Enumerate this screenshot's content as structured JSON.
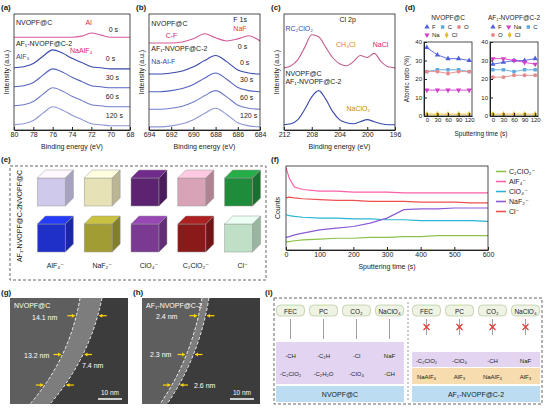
{
  "chart_data": [
    {
      "type": "line",
      "panel_label": "(a)",
      "xlabel": "Binding energy (eV)",
      "ylabel": "Intensity (a.u.)",
      "xlim": [
        80,
        68
      ],
      "xticks": [
        80,
        78,
        76,
        74,
        72,
        70,
        68
      ],
      "ylim": [
        0,
        110
      ],
      "tick_labels": "x",
      "x": [
        80,
        79,
        78,
        77,
        76,
        75,
        74,
        73,
        72,
        71,
        70,
        69,
        68
      ],
      "series": [
        {
          "color": "#d45a9a",
          "values": [
            88,
            88,
            88,
            88,
            88,
            88,
            88,
            89,
            92,
            90,
            88,
            88,
            88
          ]
        },
        {
          "color": "#3949ab",
          "values": [
            59,
            60,
            63,
            70,
            76,
            73,
            68,
            64,
            60,
            59,
            58,
            58,
            58
          ]
        },
        {
          "color": "#5563bd",
          "values": [
            41,
            42,
            45,
            52,
            58,
            55,
            50,
            46,
            42,
            41,
            40,
            40,
            40
          ]
        },
        {
          "color": "#717dc9",
          "values": [
            23,
            24,
            27,
            34,
            40,
            37,
            32,
            28,
            24,
            23,
            22,
            22,
            22
          ]
        },
        {
          "color": "#8d97d4",
          "values": [
            5,
            6,
            9,
            16,
            22,
            19,
            14,
            10,
            6,
            5,
            4,
            4,
            4
          ]
        }
      ],
      "annotations": [
        {
          "text": "NVOPF@C",
          "x": 79.8,
          "y": 100
        },
        {
          "text": "Al",
          "x": 72.6,
          "y": 100,
          "color": "#d81b60"
        },
        {
          "text": "0 s",
          "x": 70.2,
          "y": 93
        },
        {
          "text": "AF₁-NVOPF@C-2",
          "x": 79.8,
          "y": 80
        },
        {
          "text": "NaAlF₄",
          "x": 74.2,
          "y": 73,
          "color": "#d81b60"
        },
        {
          "text": "AlF₃",
          "x": 79.8,
          "y": 67,
          "color": "#3949ab"
        },
        {
          "text": "0 s",
          "x": 70.5,
          "y": 65
        },
        {
          "text": "30 s",
          "x": 70.5,
          "y": 47
        },
        {
          "text": "60 s",
          "x": 70.5,
          "y": 29
        },
        {
          "text": "120 s",
          "x": 70.5,
          "y": 11
        }
      ]
    },
    {
      "type": "line",
      "panel_label": "(b)",
      "xlabel": "Binding energy (eV)",
      "ylabel": "Intensity (a.u.)",
      "xlim": [
        694,
        684
      ],
      "xticks": [
        694,
        692,
        690,
        688,
        686,
        684
      ],
      "ylim": [
        0,
        112
      ],
      "tick_labels": "x",
      "x": [
        694,
        693,
        692,
        691,
        690,
        689,
        688,
        687,
        686,
        685,
        684
      ],
      "series": [
        {
          "color": "#d45a9a",
          "values": [
            84,
            84,
            84,
            85,
            88,
            93,
            89,
            86,
            88,
            91,
            86
          ]
        },
        {
          "color": "#3949ab",
          "values": [
            54,
            54,
            55,
            57,
            61,
            67,
            72,
            66,
            58,
            55,
            54
          ]
        },
        {
          "color": "#5563bd",
          "values": [
            37,
            37,
            38,
            40,
            44,
            50,
            55,
            49,
            41,
            38,
            37
          ]
        },
        {
          "color": "#717dc9",
          "values": [
            20,
            20,
            21,
            23,
            27,
            33,
            38,
            32,
            24,
            21,
            20
          ]
        },
        {
          "color": "#8d97d4",
          "values": [
            3,
            3,
            4,
            6,
            10,
            16,
            21,
            15,
            7,
            4,
            3
          ]
        }
      ],
      "annotations": [
        {
          "text": "NVOPF@C",
          "x": 693.8,
          "y": 100
        },
        {
          "text": "F 1s",
          "x": 686.4,
          "y": 104
        },
        {
          "text": "C-F",
          "x": 692.5,
          "y": 89,
          "color": "#d81b60"
        },
        {
          "text": "NaF",
          "x": 686.4,
          "y": 96,
          "color": "#e53935"
        },
        {
          "text": "0 s",
          "x": 686,
          "y": 78
        },
        {
          "text": "AF₁-NVOPF@C-2",
          "x": 693.8,
          "y": 76
        },
        {
          "text": "Na-Al-F",
          "x": 693.8,
          "y": 64,
          "color": "#3949ab"
        },
        {
          "text": "0 s",
          "x": 685.8,
          "y": 63
        },
        {
          "text": "30 s",
          "x": 685.8,
          "y": 46
        },
        {
          "text": "60 s",
          "x": 685.8,
          "y": 29
        },
        {
          "text": "120 s",
          "x": 685.8,
          "y": 12
        }
      ]
    },
    {
      "type": "line",
      "panel_label": "(c)",
      "xlabel": "Binding energy (eV)",
      "ylabel": "Intensity (a.u.)",
      "xlim": [
        212,
        196
      ],
      "xticks": [
        212,
        208,
        204,
        200,
        196
      ],
      "ylim": [
        0,
        112
      ],
      "tick_labels": "x",
      "x": [
        212,
        211,
        210,
        209,
        208,
        207,
        206,
        205,
        204,
        203,
        202,
        201,
        200,
        199,
        198,
        197,
        196
      ],
      "series": [
        {
          "color": "#c06090",
          "values": [
            60,
            62,
            68,
            80,
            92,
            90,
            80,
            70,
            64,
            62,
            66,
            72,
            70,
            74,
            66,
            61,
            60
          ]
        },
        {
          "color": "#3949ab",
          "values": [
            5,
            6,
            10,
            20,
            32,
            38,
            30,
            18,
            10,
            7,
            6,
            8,
            10,
            8,
            6,
            5,
            5
          ]
        }
      ],
      "annotations": [
        {
          "text": "Cl 2p",
          "x": 204,
          "y": 104
        },
        {
          "text": "RC₂ClO₂",
          "x": 211.8,
          "y": 96,
          "color": "#3949ab"
        },
        {
          "text": "CH₃Cl",
          "x": 204.5,
          "y": 80,
          "color": "#e07b39"
        },
        {
          "text": "NaCl",
          "x": 199.2,
          "y": 80,
          "color": "#d81b60"
        },
        {
          "text": "NVOPF@C",
          "x": 211.8,
          "y": 52
        },
        {
          "text": "AF₁-NVOPF@C-2",
          "x": 211.8,
          "y": 44
        },
        {
          "text": "NaClO₂",
          "x": 203,
          "y": 18,
          "color": "#c98a00"
        }
      ]
    },
    {
      "type": "line",
      "panel_label": "(d)",
      "xlabel": "Sputtering time (s)",
      "ylabel": "Atomic ratio (%)",
      "x": [
        0,
        30,
        60,
        90,
        120
      ],
      "xlim": [
        -8,
        128
      ],
      "xticks": [
        0,
        30,
        60,
        90,
        120
      ],
      "ylim": [
        0,
        40
      ],
      "yticks": [
        0,
        10,
        20,
        30,
        40
      ],
      "legend": "top",
      "subplots": [
        {
          "title": "NVOPF@C",
          "series": [
            {
              "name": "F",
              "color": "#4f5fd9",
              "marker": "triangle",
              "values": [
                37,
                33,
                31,
                31,
                30
              ]
            },
            {
              "name": "C",
              "color": "#5fa8e0",
              "marker": "square",
              "values": [
                24,
                25,
                25,
                25,
                24
              ]
            },
            {
              "name": "O",
              "color": "#e58a8a",
              "marker": "circle",
              "values": [
                24,
                24,
                23,
                24,
                24
              ]
            },
            {
              "name": "Na",
              "color": "#d23fc8",
              "marker": "triangle-down",
              "values": [
                14,
                14,
                14,
                14,
                14
              ]
            },
            {
              "name": "Cl",
              "color": "#e8b92a",
              "marker": "diamond",
              "values": [
                1,
                1,
                1,
                1,
                1
              ]
            }
          ]
        },
        {
          "title": "AF₁-NVOPF@C-2",
          "series": [
            {
              "name": "F",
              "color": "#4f5fd9",
              "marker": "triangle",
              "values": [
                28,
                29,
                30,
                30,
                31
              ]
            },
            {
              "name": "Na",
              "color": "#d23fc8",
              "marker": "triangle-down",
              "values": [
                31,
                31,
                30,
                29,
                28
              ]
            },
            {
              "name": "C",
              "color": "#5fa8e0",
              "marker": "square",
              "values": [
                25,
                25,
                24,
                25,
                25
              ]
            },
            {
              "name": "O",
              "color": "#e58a8a",
              "marker": "circle",
              "values": [
                21,
                21,
                22,
                22,
                22
              ]
            },
            {
              "name": "Cl",
              "color": "#e8b92a",
              "marker": "diamond",
              "values": [
                1,
                1,
                1,
                1,
                1
              ]
            }
          ]
        }
      ]
    },
    {
      "type": "line",
      "panel_label": "(f)",
      "xlabel": "Sputtering time (s)",
      "ylabel": "Counts",
      "x": [
        0,
        10,
        25,
        50,
        100,
        150,
        200,
        250,
        300,
        350,
        400,
        450,
        500,
        550,
        600
      ],
      "xlim": [
        0,
        600
      ],
      "xticks": [
        0,
        100,
        200,
        300,
        400,
        500,
        600
      ],
      "ylim": [
        0,
        100
      ],
      "tick_labels": "x",
      "legend": "right",
      "series": [
        {
          "name": "C₂ClO₂⁻",
          "color": "#8bc34a",
          "values": [
            10,
            10,
            11,
            12,
            13,
            14,
            14,
            15,
            15,
            16,
            16,
            17,
            17,
            17,
            17
          ]
        },
        {
          "name": "AlF₄⁻",
          "color": "#ff5fa8",
          "values": [
            98,
            85,
            75,
            72,
            70,
            70,
            69,
            69,
            69,
            68,
            68,
            68,
            68,
            68,
            68
          ]
        },
        {
          "name": "ClO₄⁻",
          "color": "#29b6d6",
          "values": [
            42,
            41,
            40,
            39,
            38,
            38,
            37,
            37,
            36,
            36,
            35,
            35,
            35,
            35,
            34
          ]
        },
        {
          "name": "NaF₂⁻",
          "color": "#8c5bd6",
          "values": [
            15,
            16,
            18,
            20,
            24,
            26,
            28,
            32,
            38,
            48,
            49,
            49,
            50,
            50,
            50
          ]
        },
        {
          "name": "Cl⁻",
          "color": "#f05050",
          "values": [
            62,
            63,
            62,
            61,
            60,
            59,
            59,
            58,
            58,
            58,
            57,
            57,
            57,
            56,
            56
          ]
        }
      ]
    }
  ],
  "figures": {
    "e": {
      "panel_label": "(e)",
      "ions": [
        "AlF₄⁻",
        "NaF₂⁻",
        "ClO₄⁻",
        "C₂ClO₂⁻",
        "Cl⁻"
      ],
      "rows": [
        {
          "title": "NVOPF@C",
          "colors": [
            "#cfc9ec",
            "#e6e2b5",
            "#5b2370",
            "#d8a3b6",
            "#1e8c3a"
          ]
        },
        {
          "title": "AF₁-NVOPF@C-2",
          "colors": [
            "#1f30c8",
            "#a29c34",
            "#7a3a92",
            "#8a1a1a",
            "#bfe0c6"
          ]
        }
      ]
    },
    "g": {
      "panel_label": "(g)",
      "title": "NVOPF@C",
      "thickness": [
        "14.1 nm",
        "13.2 nm",
        "7.4 nm"
      ],
      "scale_bar": "10 nm"
    },
    "h": {
      "panel_label": "(h)",
      "title": "AF₁-NVOPF@C-2",
      "thickness": [
        "2.4 nm",
        "2.3 nm",
        "2.6 nm"
      ],
      "scale_bar": "10 nm"
    },
    "i": {
      "panel_label": "(i)",
      "left": {
        "title": "NVOPF@C",
        "molecules": [
          "FEC",
          "PC",
          "CO₂",
          "NaClO₄"
        ],
        "sei": [
          "-CH",
          "-C₂H",
          "-Cl",
          "NaF",
          "-C₂ClO₂",
          "-C₂H₂O",
          "-ClO₄",
          "-CH"
        ]
      },
      "right": {
        "title": "AF₁-NVOPF@C-2",
        "molecules": [
          "FEC",
          "PC",
          "CO₂",
          "NaClO₄"
        ],
        "sei": [
          "-C₂ClO₂",
          "-ClO₄",
          "-CH",
          "NaF",
          "NaAlF₄",
          "AlF₃",
          "NaAlF₄",
          "AlF₃"
        ]
      }
    }
  }
}
